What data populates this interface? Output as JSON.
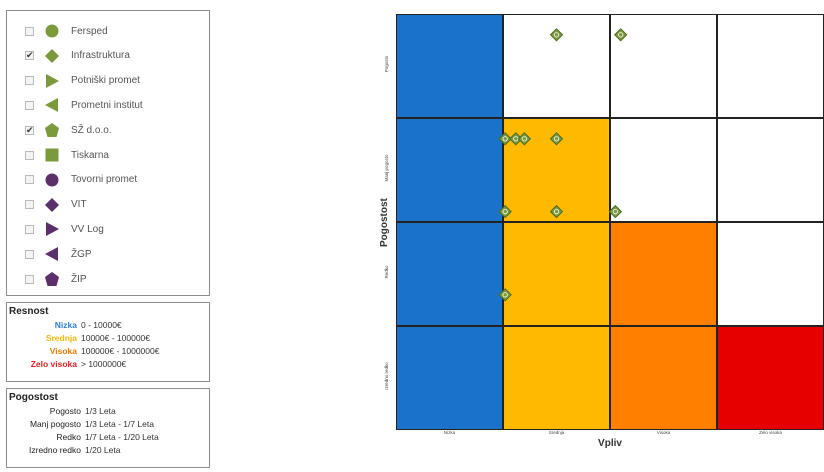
{
  "filters": [
    {
      "label": "Fersped",
      "checked": false,
      "shape": "circle",
      "color": "#7a9a3c"
    },
    {
      "label": "Infrastruktura",
      "checked": true,
      "shape": "diamond",
      "color": "#7a9a3c"
    },
    {
      "label": "Potniški promet",
      "checked": false,
      "shape": "triangle-right",
      "color": "#7a9a3c"
    },
    {
      "label": "Prometni institut",
      "checked": false,
      "shape": "triangle-left",
      "color": "#7a9a3c"
    },
    {
      "label": "SŽ d.o.o.",
      "checked": true,
      "shape": "pentagon",
      "color": "#7a9a3c"
    },
    {
      "label": "Tiskarna",
      "checked": false,
      "shape": "square",
      "color": "#7a9a3c"
    },
    {
      "label": "Tovorni promet",
      "checked": false,
      "shape": "circle",
      "color": "#5b2f6a"
    },
    {
      "label": "VIT",
      "checked": false,
      "shape": "diamond",
      "color": "#5b2f6a"
    },
    {
      "label": "VV Log",
      "checked": false,
      "shape": "triangle-right",
      "color": "#5b2f6a"
    },
    {
      "label": "ŽGP",
      "checked": false,
      "shape": "triangle-left",
      "color": "#5b2f6a"
    },
    {
      "label": "ŽIP",
      "checked": false,
      "shape": "pentagon",
      "color": "#5b2f6a"
    }
  ],
  "severity": {
    "title": "Resnost",
    "items": [
      {
        "key": "Nizka",
        "value": "0 - 10000€",
        "color": "#2e7fd0"
      },
      {
        "key": "Srednja",
        "value": "10000€ - 100000€",
        "color": "#f5b400"
      },
      {
        "key": "Visoka",
        "value": "100000€ - 1000000€",
        "color": "#f07a00"
      },
      {
        "key": "Zelo visoka",
        "value": "> 1000000€",
        "color": "#e02020"
      }
    ]
  },
  "frequency": {
    "title": "Pogostost",
    "items": [
      {
        "key": "Pogosto",
        "value": "1/3 Leta"
      },
      {
        "key": "Manj pogosto",
        "value": "1/3 Leta - 1/7 Leta"
      },
      {
        "key": "Redko",
        "value": "1/7 Leta - 1/20 Leta"
      },
      {
        "key": "Izredno redko",
        "value": "1/20 Leta"
      }
    ]
  },
  "matrix": {
    "y_title": "Pogostost",
    "x_title": "Vpliv",
    "x_ticks": [
      "Nizka",
      "Srednja",
      "Visoka",
      "Zelo visoka"
    ],
    "y_ticks": [
      "Pogosto",
      "Manj pogosto",
      "Redko",
      "Izredno redko"
    ],
    "cell_colors": [
      [
        "#1a73c9",
        "#ffffff",
        "#ffffff",
        "#ffffff"
      ],
      [
        "#1a73c9",
        "#ffba00",
        "#ffffff",
        "#ffffff"
      ],
      [
        "#1a73c9",
        "#ffba00",
        "#ff7f00",
        "#ffffff"
      ],
      [
        "#1a73c9",
        "#ffba00",
        "#ff7f00",
        "#e60000"
      ]
    ],
    "marker_color": "#7a9a3c",
    "points": [
      {
        "impact": 1.5,
        "freq": 0.2
      },
      {
        "impact": 2.1,
        "freq": 0.2
      },
      {
        "impact": 1.02,
        "freq": 1.2
      },
      {
        "impact": 1.12,
        "freq": 1.2
      },
      {
        "impact": 1.2,
        "freq": 1.2
      },
      {
        "impact": 1.5,
        "freq": 1.2
      },
      {
        "impact": 1.02,
        "freq": 1.9
      },
      {
        "impact": 1.5,
        "freq": 1.9
      },
      {
        "impact": 2.05,
        "freq": 1.9
      },
      {
        "impact": 1.02,
        "freq": 2.7
      }
    ]
  }
}
